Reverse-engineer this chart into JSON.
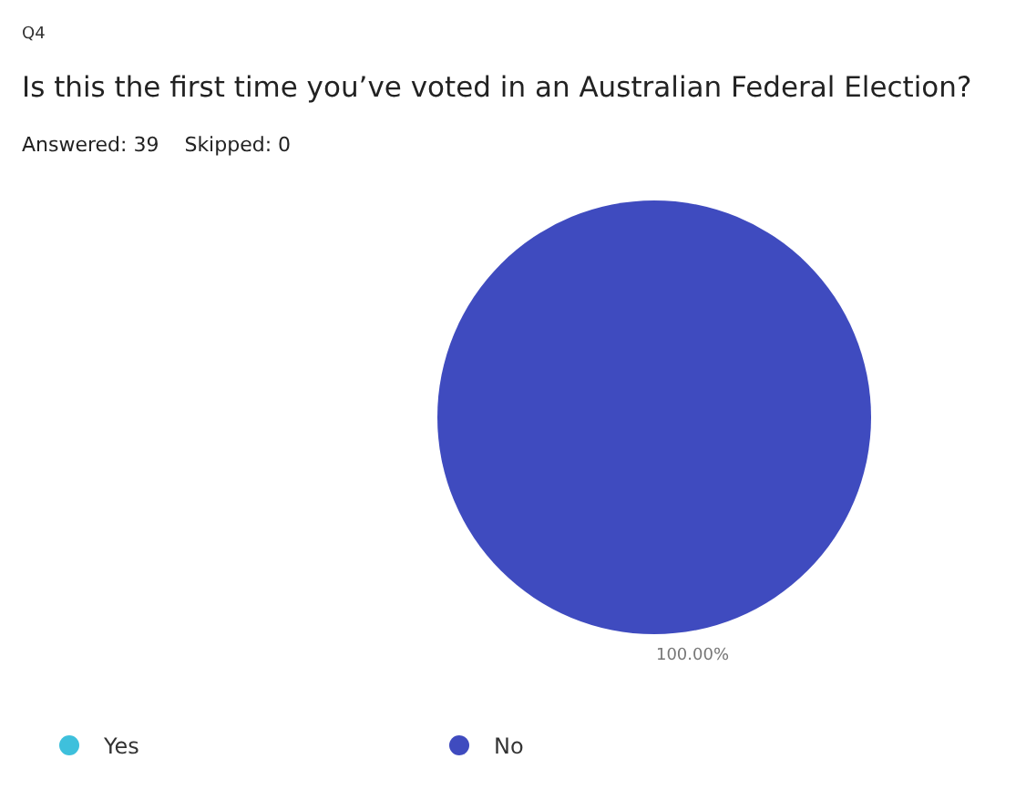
{
  "chart_data": {
    "type": "pie",
    "title": "Is this the first time you’ve voted in an Australian Federal Election?",
    "subtitle": "Answered: 39    Skipped: 0",
    "annotations": [
      "Q4"
    ],
    "categories": [
      "Yes",
      "No"
    ],
    "values": [
      0,
      100
    ],
    "colors": [
      "#3ec0dc",
      "#3f4bbf"
    ],
    "value_labels": [
      null,
      "100.00%"
    ],
    "legend": "bottom"
  }
}
